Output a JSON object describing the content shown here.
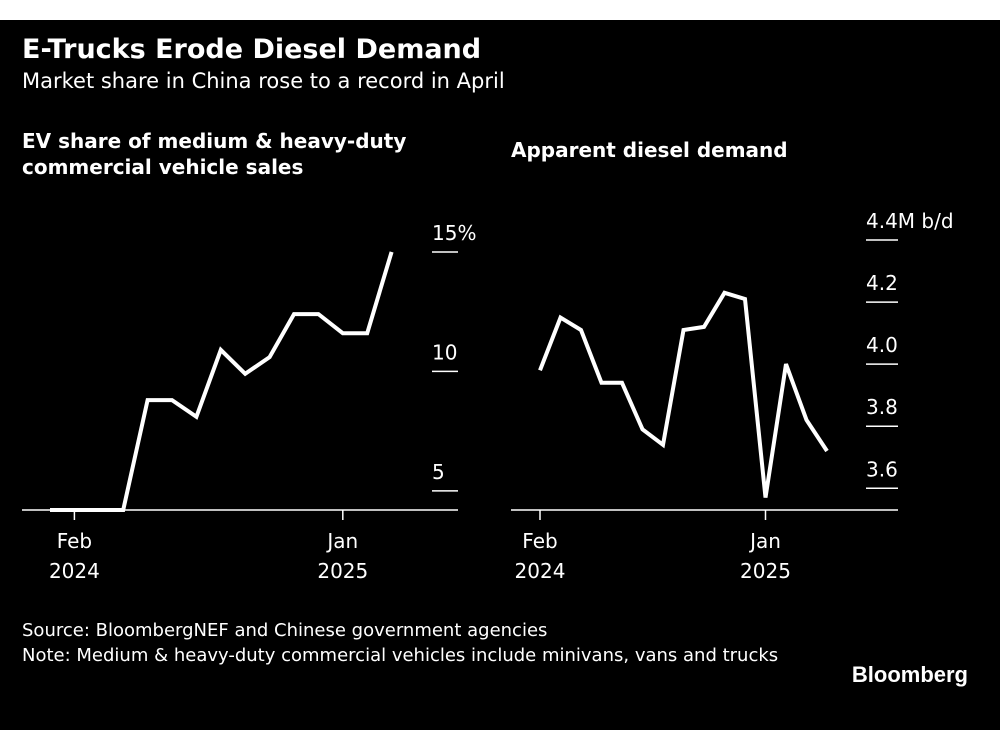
{
  "header": {
    "title": "E-Trucks Erode Diesel Demand",
    "subtitle": "Market share in China rose to a record in April"
  },
  "footer": {
    "source": "Source: BloombergNEF and Chinese government agencies",
    "note": "Note: Medium & heavy-duty commercial vehicles include minivans, vans and trucks",
    "brand": "Bloomberg"
  },
  "colors": {
    "background": "#000000",
    "line": "#ffffff",
    "text": "#ffffff"
  },
  "chart_data": [
    {
      "type": "line",
      "title": "EV share of medium & heavy-duty commercial vehicle sales",
      "title_lines": [
        "EV share of medium & heavy-duty",
        "commercial vehicle sales"
      ],
      "x": [
        "2024-01",
        "2024-02",
        "2024-03",
        "2024-04",
        "2024-05",
        "2024-06",
        "2024-07",
        "2024-08",
        "2024-09",
        "2024-10",
        "2024-11",
        "2024-12",
        "2025-01",
        "2025-02",
        "2025-03",
        "2025-04"
      ],
      "series": [
        {
          "values": [
            4.2,
            4.2,
            4.2,
            4.2,
            8.8,
            8.8,
            8.1,
            10.9,
            9.9,
            10.6,
            12.4,
            12.4,
            11.6,
            11.6,
            15.0,
            null
          ]
        }
      ],
      "ylim": [
        4.2,
        15.5
      ],
      "y_ticks": [
        {
          "value": 5,
          "label": "5"
        },
        {
          "value": 10,
          "label": "10"
        },
        {
          "value": 15,
          "label": "15%"
        }
      ],
      "x_ticks": [
        {
          "x": "2024-02",
          "label": [
            "Feb",
            "2024"
          ]
        },
        {
          "x": "2025-01",
          "label": [
            "Jan",
            "2025"
          ]
        }
      ],
      "xlabel": "",
      "ylabel": "",
      "grid": false,
      "legend": "none"
    },
    {
      "type": "line",
      "title": "Apparent diesel demand",
      "title_lines": [
        "Apparent diesel demand"
      ],
      "x": [
        "2024-02",
        "2024-03",
        "2024-04",
        "2024-05",
        "2024-06",
        "2024-07",
        "2024-08",
        "2024-09",
        "2024-10",
        "2024-11",
        "2024-12",
        "2025-01",
        "2025-02",
        "2025-03",
        "2025-04"
      ],
      "series": [
        {
          "values": [
            3.98,
            4.15,
            4.11,
            3.94,
            3.94,
            3.79,
            3.74,
            4.11,
            4.12,
            4.23,
            4.21,
            3.57,
            4.0,
            3.82,
            3.72
          ]
        }
      ],
      "ylim": [
        3.53,
        4.4
      ],
      "y_ticks": [
        {
          "value": 3.6,
          "label": "3.6"
        },
        {
          "value": 3.8,
          "label": "3.8"
        },
        {
          "value": 4.0,
          "label": "4.0"
        },
        {
          "value": 4.2,
          "label": "4.2"
        },
        {
          "value": 4.4,
          "label": "4.4M b/d"
        }
      ],
      "x_ticks": [
        {
          "x": "2024-02",
          "label": [
            "Feb",
            "2024"
          ]
        },
        {
          "x": "2025-01",
          "label": [
            "Jan",
            "2025"
          ]
        }
      ],
      "xlabel": "",
      "ylabel": "",
      "grid": false,
      "legend": "none"
    }
  ]
}
